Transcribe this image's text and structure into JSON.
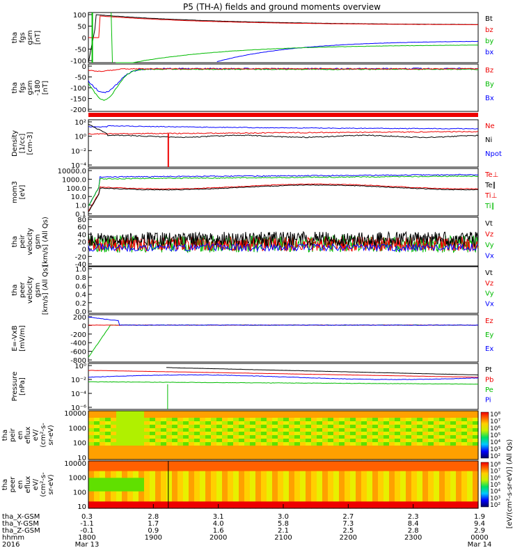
{
  "title": "P5 (TH-A) fields and ground moments overview",
  "colors": {
    "black": "#000000",
    "red": "#ee0000",
    "green": "#00dd00",
    "blue": "#0000ff"
  },
  "chart_data": [
    {
      "type": "line",
      "ylabel_lines": [
        "tha",
        "fgs",
        "gsm",
        "[nT]"
      ],
      "yticks": [
        "100",
        "50",
        "0",
        "-50",
        "-100"
      ],
      "ylim": [
        -100,
        100
      ],
      "legend": [
        {
          "name": "Bt",
          "color": "#000000"
        },
        {
          "name": "bz",
          "color": "#ee0000"
        },
        {
          "name": "by",
          "color": "#00bb00"
        },
        {
          "name": "bx",
          "color": "#0000ff"
        }
      ]
    },
    {
      "type": "line",
      "ylabel_lines": [
        "tha",
        "fgs",
        "gsm",
        "-180",
        "[nT]"
      ],
      "yticks": [
        "0",
        "-50",
        "-100",
        "-150",
        "-200"
      ],
      "ylim": [
        -210,
        10
      ],
      "legend": [
        {
          "name": "Bz",
          "color": "#ee0000"
        },
        {
          "name": "By",
          "color": "#00bb00"
        },
        {
          "name": "Bx",
          "color": "#0000ff"
        }
      ]
    },
    {
      "type": "line",
      "ylabel_lines": [
        "Density",
        "[1/cc]",
        "[cm-3]"
      ],
      "yticks": [
        "10²",
        "10⁰",
        "10⁻²",
        "10⁻⁴"
      ],
      "log": true,
      "legend": [
        {
          "name": "Ne",
          "color": "#ee0000"
        },
        {
          "name": "Ni",
          "color": "#000000"
        },
        {
          "name": "Npot",
          "color": "#0000ff"
        }
      ]
    },
    {
      "type": "line",
      "ylabel_lines": [
        "mom3",
        "[eV]"
      ],
      "yticks": [
        "10000.0",
        "1000.0",
        "100.0",
        "10.0",
        "1.0",
        "0.1"
      ],
      "log": true,
      "legend": [
        {
          "name": "Te⊥",
          "color": "#ee0000"
        },
        {
          "name": "Te∥",
          "color": "#000000"
        },
        {
          "name": "Ti⊥",
          "color": "#ee0000"
        },
        {
          "name": "Ti∥",
          "color": "#00bb00"
        }
      ]
    },
    {
      "type": "line",
      "ylabel_lines": [
        "tha",
        "peir",
        "velocity",
        "gsm",
        "[km/s] (All Qs)"
      ],
      "yticks": [
        "80",
        "60",
        "40",
        "20",
        "0",
        "-20",
        "-40"
      ],
      "ylim": [
        -45,
        85
      ],
      "legend": [
        {
          "name": "Vt",
          "color": "#000000"
        },
        {
          "name": "Vz",
          "color": "#ee0000"
        },
        {
          "name": "Vy",
          "color": "#00bb00"
        },
        {
          "name": "Vx",
          "color": "#0000ff"
        }
      ]
    },
    {
      "type": "line",
      "ylabel_lines": [
        "tha",
        "peer",
        "velocity",
        "gsm",
        "[km/s] (All Qs)"
      ],
      "yticks": [
        "1.0",
        "0.8",
        "0.6",
        "0.4",
        "0.2",
        "0.0"
      ],
      "ylim": [
        0,
        1
      ],
      "legend": [
        {
          "name": "Vt",
          "color": "#000000"
        },
        {
          "name": "Vz",
          "color": "#ee0000"
        },
        {
          "name": "Vy",
          "color": "#00bb00"
        },
        {
          "name": "Vx",
          "color": "#0000ff"
        }
      ]
    },
    {
      "type": "line",
      "ylabel_lines": [
        "E=-VxB",
        "[mV/m]"
      ],
      "yticks": [
        "200",
        "0",
        "-200",
        "-400",
        "-600",
        "-800"
      ],
      "ylim": [
        -820,
        230
      ],
      "legend": [
        {
          "name": "Ez",
          "color": "#ee0000"
        },
        {
          "name": "Ey",
          "color": "#00bb00"
        },
        {
          "name": "Ex",
          "color": "#0000ff"
        }
      ]
    },
    {
      "type": "line",
      "ylabel_lines": [
        "Pressure",
        "[nPa]"
      ],
      "yticks": [
        "10⁰",
        "10⁻²",
        "10⁻⁴",
        "10⁻⁶"
      ],
      "log": true,
      "legend": [
        {
          "name": "Pt",
          "color": "#000000"
        },
        {
          "name": "Pb",
          "color": "#ee0000"
        },
        {
          "name": "Pe",
          "color": "#00bb00"
        },
        {
          "name": "Pi",
          "color": "#0000ff"
        }
      ]
    },
    {
      "type": "heatmap",
      "ylabel_lines": [
        "tha",
        "peir",
        "en",
        "eflux",
        "eV/",
        "(cm²-s-",
        "sr-eV)"
      ],
      "yticks": [
        "10000",
        "1000",
        "100",
        "10"
      ],
      "colorbar_ticks": [
        "10⁸",
        "10⁷",
        "10⁶",
        "10⁵",
        "10⁴",
        "10³",
        "10²"
      ],
      "colorbar_label": "[eV/(cm²-s-sr-eV)] (All Qs)"
    },
    {
      "type": "heatmap",
      "ylabel_lines": [
        "tha",
        "peer",
        "en",
        "eflux",
        "eV/",
        "(cm²-s-",
        "sr-eV)"
      ],
      "yticks": [
        "10000",
        "1000",
        "100",
        "10"
      ],
      "colorbar_ticks": [
        "10⁸",
        "10⁷",
        "10⁶",
        "10⁵",
        "10⁴",
        "10³",
        "10²"
      ],
      "colorbar_label": "[eV/(cm²-s-sr-eV)] (All Qs)"
    }
  ],
  "xaxis": {
    "rows": [
      {
        "label": "tha_X-GSM",
        "values": [
          "0.3",
          "2.8",
          "3.1",
          "3.0",
          "2.7",
          "2.3",
          "1.9"
        ]
      },
      {
        "label": "tha_Y-GSM",
        "values": [
          "-1.1",
          "1.7",
          "4.0",
          "5.8",
          "7.3",
          "8.4",
          "9.4"
        ]
      },
      {
        "label": "tha_Z-GSM",
        "values": [
          "-0.1",
          "0.9",
          "1.6",
          "2.1",
          "2.5",
          "2.8",
          "2.9"
        ]
      },
      {
        "label": "hhmm",
        "values": [
          "1800",
          "1900",
          "2000",
          "2100",
          "2200",
          "2300",
          "0000"
        ]
      },
      {
        "label": "2016",
        "values": [
          "Mar 13",
          "",
          "",
          "",
          "",
          "",
          "Mar 14"
        ]
      }
    ],
    "times": [
      1800,
      1900,
      2000,
      2100,
      2200,
      2300,
      2400
    ]
  }
}
